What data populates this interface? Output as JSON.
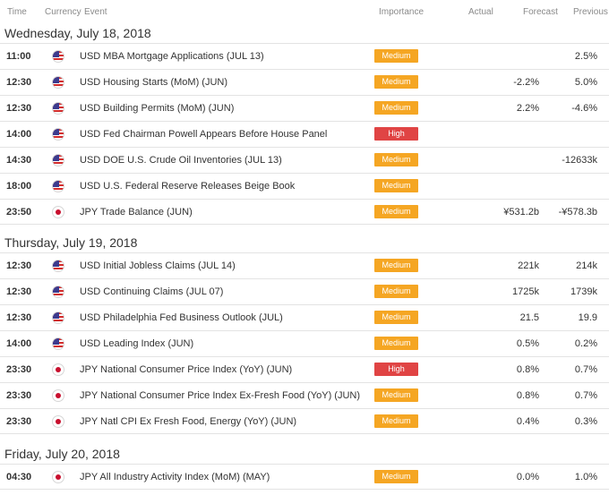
{
  "header": {
    "time": "Time",
    "currency": "Currency",
    "event": "Event",
    "importance": "Importance",
    "actual": "Actual",
    "forecast": "Forecast",
    "previous": "Previous"
  },
  "colors": {
    "medium": "#f5a623",
    "high": "#e04444"
  },
  "days": [
    {
      "label": "Wednesday, July 18, 2018",
      "events": [
        {
          "time": "11:00",
          "currency": "usd",
          "event": "USD MBA Mortgage Applications (JUL 13)",
          "importance": "Medium",
          "actual": "",
          "forecast": "",
          "previous": "2.5%"
        },
        {
          "time": "12:30",
          "currency": "usd",
          "event": "USD Housing Starts (MoM) (JUN)",
          "importance": "Medium",
          "actual": "",
          "forecast": "-2.2%",
          "previous": "5.0%"
        },
        {
          "time": "12:30",
          "currency": "usd",
          "event": "USD Building Permits (MoM) (JUN)",
          "importance": "Medium",
          "actual": "",
          "forecast": "2.2%",
          "previous": "-4.6%"
        },
        {
          "time": "14:00",
          "currency": "usd",
          "event": "USD Fed Chairman Powell Appears Before House Panel",
          "importance": "High",
          "actual": "",
          "forecast": "",
          "previous": ""
        },
        {
          "time": "14:30",
          "currency": "usd",
          "event": "USD DOE U.S. Crude Oil Inventories (JUL 13)",
          "importance": "Medium",
          "actual": "",
          "forecast": "",
          "previous": "-12633k"
        },
        {
          "time": "18:00",
          "currency": "usd",
          "event": "USD U.S. Federal Reserve Releases Beige Book",
          "importance": "Medium",
          "actual": "",
          "forecast": "",
          "previous": ""
        },
        {
          "time": "23:50",
          "currency": "jpy",
          "event": "JPY Trade Balance (JUN)",
          "importance": "Medium",
          "actual": "",
          "forecast": "¥531.2b",
          "previous": "-¥578.3b"
        }
      ]
    },
    {
      "label": "Thursday, July 19, 2018",
      "events": [
        {
          "time": "12:30",
          "currency": "usd",
          "event": "USD Initial Jobless Claims (JUL 14)",
          "importance": "Medium",
          "actual": "",
          "forecast": "221k",
          "previous": "214k"
        },
        {
          "time": "12:30",
          "currency": "usd",
          "event": "USD Continuing Claims (JUL 07)",
          "importance": "Medium",
          "actual": "",
          "forecast": "1725k",
          "previous": "1739k"
        },
        {
          "time": "12:30",
          "currency": "usd",
          "event": "USD Philadelphia Fed Business Outlook (JUL)",
          "importance": "Medium",
          "actual": "",
          "forecast": "21.5",
          "previous": "19.9"
        },
        {
          "time": "14:00",
          "currency": "usd",
          "event": "USD Leading Index (JUN)",
          "importance": "Medium",
          "actual": "",
          "forecast": "0.5%",
          "previous": "0.2%"
        },
        {
          "time": "23:30",
          "currency": "jpy",
          "event": "JPY National Consumer Price Index (YoY) (JUN)",
          "importance": "High",
          "actual": "",
          "forecast": "0.8%",
          "previous": "0.7%"
        },
        {
          "time": "23:30",
          "currency": "jpy",
          "event": "JPY National Consumer Price Index Ex-Fresh Food (YoY) (JUN)",
          "importance": "Medium",
          "actual": "",
          "forecast": "0.8%",
          "previous": "0.7%"
        },
        {
          "time": "23:30",
          "currency": "jpy",
          "event": "JPY Natl CPI Ex Fresh Food, Energy (YoY) (JUN)",
          "importance": "Medium",
          "actual": "",
          "forecast": "0.4%",
          "previous": "0.3%"
        }
      ]
    },
    {
      "label": "Friday, July 20, 2018",
      "events": [
        {
          "time": "04:30",
          "currency": "jpy",
          "event": "JPY All Industry Activity Index (MoM) (MAY)",
          "importance": "Medium",
          "actual": "",
          "forecast": "0.0%",
          "previous": "1.0%"
        }
      ]
    }
  ]
}
